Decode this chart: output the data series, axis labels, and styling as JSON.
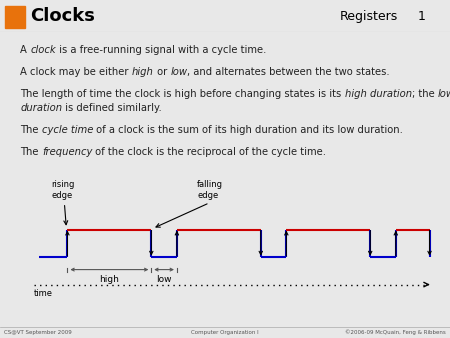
{
  "title": "Clocks",
  "header_right": "Registers",
  "slide_number": "1",
  "orange_color": "#E8720C",
  "dark_red": "#8B1A10",
  "bg_color": "#E8E8E8",
  "white_color": "#FFFFFF",
  "content_bg": "#F2F2F2",
  "text_color": "#222222",
  "red_signal": "#CC0000",
  "blue_signal": "#0000CC",
  "brace_color": "#555555",
  "footer_left": "CS@VT September 2009",
  "footer_center": "Computer Organization I",
  "footer_right": "©2006-09 McQuain, Feng & Ribbens"
}
